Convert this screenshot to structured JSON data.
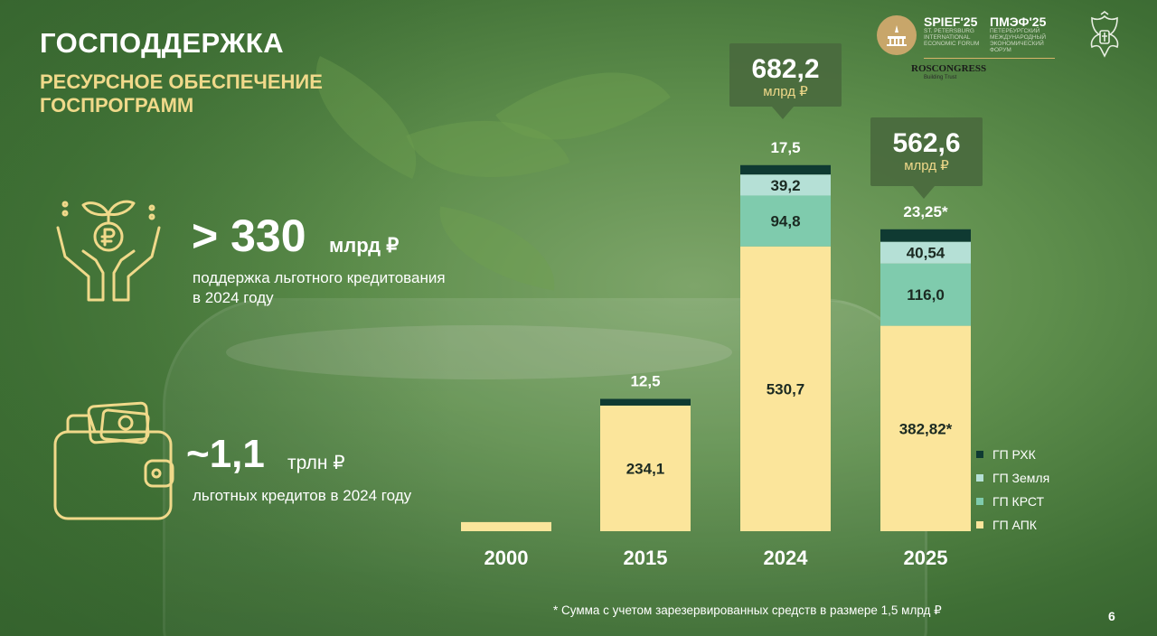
{
  "header": {
    "title": "ГОСПОДДЕРЖКА",
    "subtitle": "РЕСУРСНОЕ ОБЕСПЕЧЕНИЕ ГОСПРОГРАММ"
  },
  "stats": [
    {
      "value": "> 330",
      "unit": "млрд ₽",
      "description": "поддержка льготного кредитования в 2024 году",
      "icon": "hands-ruble-icon"
    },
    {
      "value": "~1,1",
      "unit": "трлн ₽",
      "description": "льготных кредитов в 2024 году",
      "icon": "wallet-icon"
    }
  ],
  "logos": {
    "spief": "SPIEF'25",
    "spief_small": "ST. PETERSBURG INTERNATIONAL ECONOMIC FORUM",
    "pmef": "ПМЭФ'25",
    "pmef_small": "ПЕТЕРБУРГСКИЙ МЕЖДУНАРОДНЫЙ ЭКОНОМИЧЕСКИЙ ФОРУМ",
    "roscongress": "ROSCONGRESS",
    "roscongress_sub": "Building Trust"
  },
  "colors": {
    "apk": "#fbe59b",
    "krst": "#7fcbad",
    "zemlya": "#b5e0d6",
    "rhk": "#0f3a32",
    "callout": "#4a6a3e",
    "accent": "#f0d98a"
  },
  "chart_data": {
    "type": "bar",
    "stacked": true,
    "categories": [
      "2000",
      "2015",
      "2024",
      "2025"
    ],
    "series": [
      {
        "name": "ГП АПК",
        "values": [
          null,
          234.1,
          530.7,
          382.82
        ],
        "labels": [
          "",
          "234,1",
          "530,7",
          "382,82*"
        ]
      },
      {
        "name": "ГП КРСТ",
        "values": [
          null,
          null,
          94.8,
          116.0
        ],
        "labels": [
          "",
          "",
          "94,8",
          "116,0"
        ]
      },
      {
        "name": "ГП Земля",
        "values": [
          null,
          null,
          39.2,
          40.54
        ],
        "labels": [
          "",
          "",
          "39,2",
          "40,54"
        ]
      },
      {
        "name": "ГП РХК",
        "values": [
          null,
          12.5,
          17.5,
          23.25
        ],
        "labels": [
          "",
          "12,5",
          "17,5",
          "23,25*"
        ]
      }
    ],
    "bar_2000_value": 17,
    "totals": [
      {
        "category": "2024",
        "value": "682,2",
        "unit": "млрд ₽"
      },
      {
        "category": "2025",
        "value": "562,6",
        "unit": "млрд ₽"
      }
    ],
    "legend_order": [
      "ГП РХК",
      "ГП Земля",
      "ГП КРСТ",
      "ГП АПК"
    ],
    "legend_position": "right",
    "ylim": [
      0,
      700
    ],
    "grid": false
  },
  "footnote": "* Сумма с учетом зарезервированных средств в размере 1,5 млрд ₽",
  "page_number": "6"
}
